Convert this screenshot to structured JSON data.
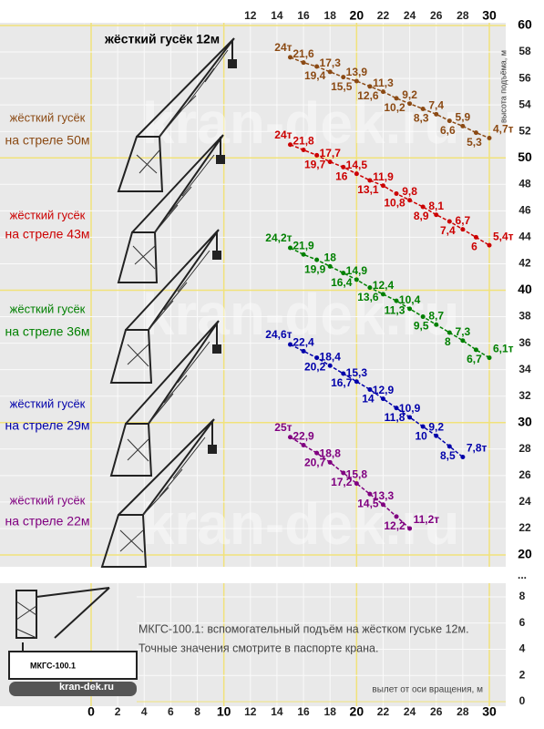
{
  "chart_data": {
    "type": "line",
    "title": "жёсткий гусёк 12м",
    "y_axis_label": "высота подъёма, м",
    "x_axis_label": "вылет от оси вращения, м",
    "note": [
      "МКГС-100.1: вспомогательный подъём на жёстком гуське 12м.",
      "Точные значения смотрите в паспорте крана."
    ],
    "watermark": "kran-dek.ru",
    "crane_model": "МКГС-100.1",
    "site": "kran-dek.ru",
    "axis_break": "...",
    "grid": true,
    "xlim": [
      0,
      30
    ],
    "xticks": [
      0,
      2,
      4,
      6,
      8,
      10,
      12,
      14,
      16,
      18,
      20,
      22,
      24,
      26,
      28,
      30
    ],
    "xticks_top": [
      12,
      14,
      16,
      18,
      20,
      22,
      24,
      26,
      28,
      30
    ],
    "ylim": [
      20,
      60
    ],
    "yticks": [
      20,
      22,
      24,
      26,
      28,
      30,
      32,
      34,
      36,
      38,
      40,
      42,
      44,
      46,
      48,
      50,
      52,
      54,
      56,
      58,
      60
    ],
    "ylim_lower": [
      0,
      8
    ],
    "yticks_lower": [
      0,
      2,
      4,
      6,
      8
    ],
    "series": [
      {
        "name_lines": [
          "жёсткий гусёк",
          "на стреле 50м"
        ],
        "color": "#8b4a14",
        "x": [
          15,
          16,
          17,
          18,
          19,
          20,
          21,
          22,
          23,
          24,
          25,
          26,
          27,
          28,
          29,
          30
        ],
        "values": [
          57.6,
          57.2,
          56.9,
          56.5,
          56.1,
          55.8,
          55.4,
          55.0,
          54.5,
          54.1,
          53.7,
          53.3,
          52.8,
          52.4,
          51.9,
          51.5
        ],
        "point_labels": [
          "24т",
          "21,6",
          "19,4",
          "17,3",
          "15,5",
          "13,9",
          "12,6",
          "11,3",
          "10,2",
          "9,2",
          "8,3",
          "7,4",
          "6,6",
          "5,9",
          "5,3",
          "4,7т"
        ]
      },
      {
        "name_lines": [
          "жёсткий гусёк",
          "на стреле 43м"
        ],
        "color": "#cc0000",
        "x": [
          15,
          16,
          17,
          18,
          19,
          20,
          21,
          22,
          23,
          24,
          25,
          26,
          27,
          28,
          29,
          30
        ],
        "values": [
          51.0,
          50.6,
          50.2,
          49.7,
          49.3,
          48.8,
          48.3,
          47.9,
          47.3,
          46.8,
          46.3,
          45.7,
          45.2,
          44.6,
          44.0,
          43.4
        ],
        "point_labels": [
          "24т",
          "21,8",
          "19,7",
          "17,7",
          "16",
          "14,5",
          "13,1",
          "11,9",
          "10,8",
          "9,8",
          "8,9",
          "8,1",
          "7,4",
          "6,7",
          "6",
          "5,4т"
        ]
      },
      {
        "name_lines": [
          "жёсткий гусёк",
          "на стреле 36м"
        ],
        "color": "#008000",
        "x": [
          15,
          16,
          17,
          18,
          19,
          20,
          21,
          22,
          23,
          24,
          25,
          26,
          27,
          28,
          29,
          30
        ],
        "values": [
          43.2,
          42.7,
          42.3,
          41.8,
          41.3,
          40.8,
          40.2,
          39.7,
          39.2,
          38.6,
          38.0,
          37.4,
          36.8,
          36.2,
          35.5,
          34.9
        ],
        "point_labels": [
          "24,2т",
          "21,9",
          "19,9",
          "18",
          "16,4",
          "14,9",
          "13,6",
          "12,4",
          "11,3",
          "10,4",
          "9,5",
          "8,7",
          "8",
          "7,3",
          "6,7",
          "6,1т"
        ]
      },
      {
        "name_lines": [
          "жёсткий гусёк",
          "на стреле 29м"
        ],
        "color": "#0000aa",
        "x": [
          15,
          16,
          17,
          18,
          19,
          20,
          21,
          22,
          23,
          24,
          25,
          26,
          27,
          28
        ],
        "values": [
          35.9,
          35.4,
          34.9,
          34.3,
          33.7,
          33.1,
          32.5,
          31.8,
          31.1,
          30.4,
          29.7,
          29.0,
          28.2,
          27.4
        ],
        "point_labels": [
          "24,6т",
          "22,4",
          "20,2",
          "18,4",
          "16,7",
          "15,3",
          "14",
          "12,9",
          "11,8",
          "10,9",
          "10",
          "9,2",
          "8,5",
          "7,8т"
        ]
      },
      {
        "name_lines": [
          "жёсткий гусёк",
          "на стреле 22м"
        ],
        "color": "#800080",
        "x": [
          15,
          16,
          17,
          18,
          19,
          20,
          21,
          22,
          23,
          24
        ],
        "values": [
          28.9,
          28.3,
          27.7,
          27.0,
          26.2,
          25.4,
          24.6,
          23.8,
          22.9,
          22.0
        ],
        "point_labels": [
          "25т",
          "22,9",
          "20,7",
          "18,8",
          "17,2",
          "15,8",
          "14,5",
          "13,3",
          "12,2",
          "11,2т"
        ]
      }
    ]
  }
}
